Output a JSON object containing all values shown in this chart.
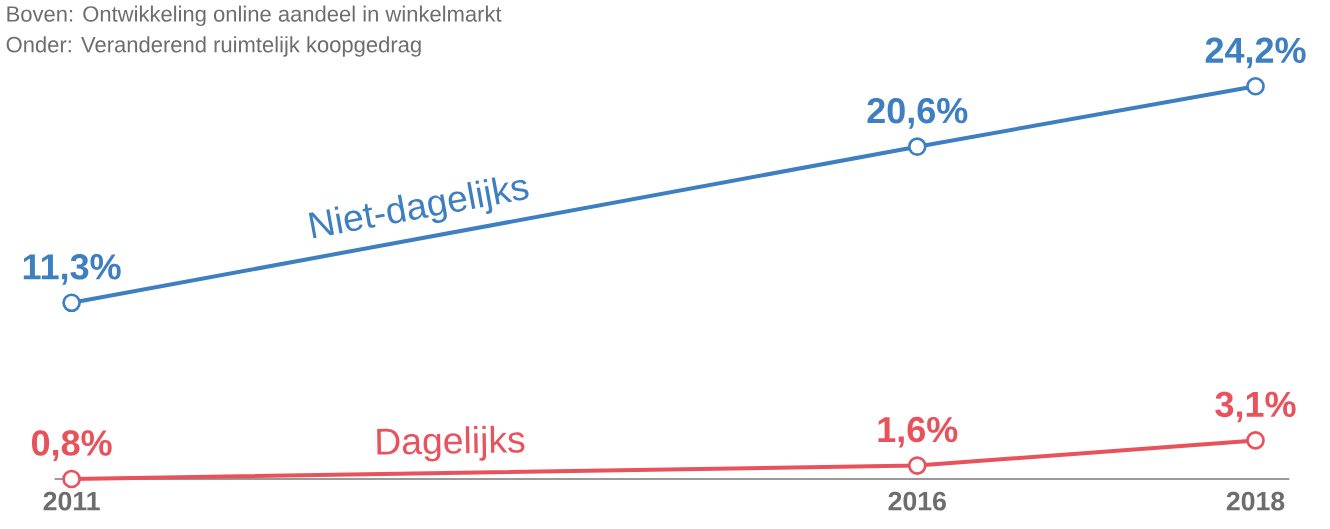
{
  "chart_data": {
    "type": "line",
    "title": "Boven: Ontwikkeling online aandeel in winkelmarkt",
    "subtitle": "Onder: Veranderend ruimtelijk koopgedrag",
    "x": [
      2011,
      2016,
      2018
    ],
    "xlim": [
      2010.9,
      2018.2
    ],
    "xticks": [
      2011,
      2016,
      2018
    ],
    "tick_labels": "x",
    "marker": "circle",
    "series": [
      {
        "name": "Niet-dagelijks",
        "color": "#3d7fc1",
        "values": [
          11.3,
          20.6,
          24.2
        ],
        "value_labels": [
          "11,3%",
          "20,6%",
          "24,2%"
        ]
      },
      {
        "name": "Dagelijks",
        "color": "#e8525c",
        "values": [
          0.8,
          1.6,
          3.1
        ],
        "value_labels": [
          "0,8%",
          "1,6%",
          "3,1%"
        ]
      }
    ]
  }
}
